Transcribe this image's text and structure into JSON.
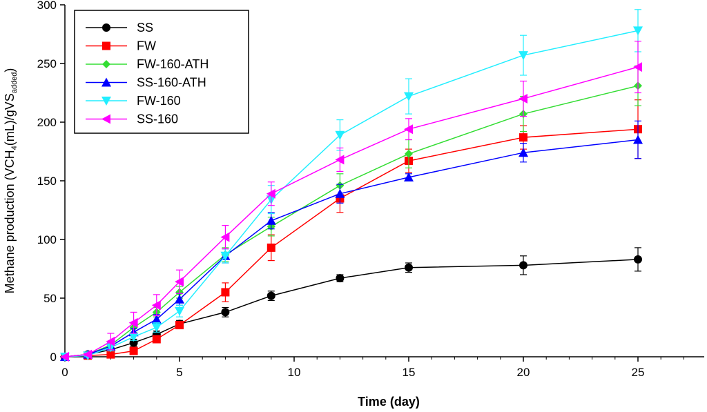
{
  "chart_data": {
    "type": "line",
    "title": "",
    "xlabel": "Time (day)",
    "ylabel": {
      "main": "Methane production (VCH",
      "sub1": "4",
      "mid": "(mL)/gVS",
      "sub2": "added",
      "end": ")"
    },
    "xlim": [
      0,
      28
    ],
    "ylim": [
      0,
      300
    ],
    "xticks": [
      0,
      5,
      10,
      15,
      20,
      25
    ],
    "yticks": [
      0,
      50,
      100,
      150,
      200,
      250,
      300
    ],
    "x": [
      0,
      1,
      2,
      3,
      4,
      5,
      7,
      9,
      12,
      15,
      20,
      25
    ],
    "legend_position": "top-left",
    "series": [
      {
        "name": "SS",
        "color": "#000000",
        "marker": "circle",
        "values": [
          0,
          2,
          6,
          12,
          19,
          28,
          38,
          52,
          67,
          76,
          78,
          83
        ],
        "errors": [
          0,
          1,
          2,
          3,
          3,
          3,
          4,
          4,
          3,
          4,
          8,
          10
        ]
      },
      {
        "name": "FW",
        "color": "#ff0000",
        "marker": "square",
        "values": [
          0,
          1,
          2,
          5,
          15,
          27,
          55,
          93,
          135,
          167,
          187,
          194
        ],
        "errors": [
          0,
          1,
          2,
          2,
          3,
          3,
          8,
          11,
          12,
          10,
          10,
          25
        ]
      },
      {
        "name": "FW-160-ATH",
        "color": "#33dd33",
        "marker": "diamond",
        "values": [
          0,
          2,
          10,
          25,
          38,
          55,
          87,
          111,
          146,
          173,
          207,
          231
        ],
        "errors": [
          0,
          1,
          3,
          4,
          4,
          5,
          6,
          8,
          10,
          12,
          15,
          17
        ]
      },
      {
        "name": "SS-160-ATH",
        "color": "#0000ff",
        "marker": "triangle-up",
        "values": [
          0,
          2,
          9,
          21,
          32,
          49,
          86,
          116,
          139,
          153,
          174,
          185
        ],
        "errors": [
          0,
          1,
          3,
          3,
          4,
          5,
          6,
          7,
          8,
          3,
          8,
          16
        ]
      },
      {
        "name": "FW-160",
        "color": "#22eeff",
        "marker": "triangle-down",
        "values": [
          0,
          1,
          8,
          17,
          25,
          39,
          86,
          134,
          189,
          222,
          257,
          278
        ],
        "errors": [
          0,
          1,
          3,
          3,
          4,
          5,
          6,
          12,
          13,
          15,
          17,
          18
        ]
      },
      {
        "name": "SS-160",
        "color": "#ff00ff",
        "marker": "triangle-left",
        "values": [
          0,
          2,
          13,
          29,
          44,
          64,
          102,
          139,
          168,
          194,
          220,
          247
        ],
        "errors": [
          0,
          1,
          7,
          9,
          9,
          10,
          10,
          10,
          10,
          9,
          15,
          22
        ]
      }
    ]
  }
}
